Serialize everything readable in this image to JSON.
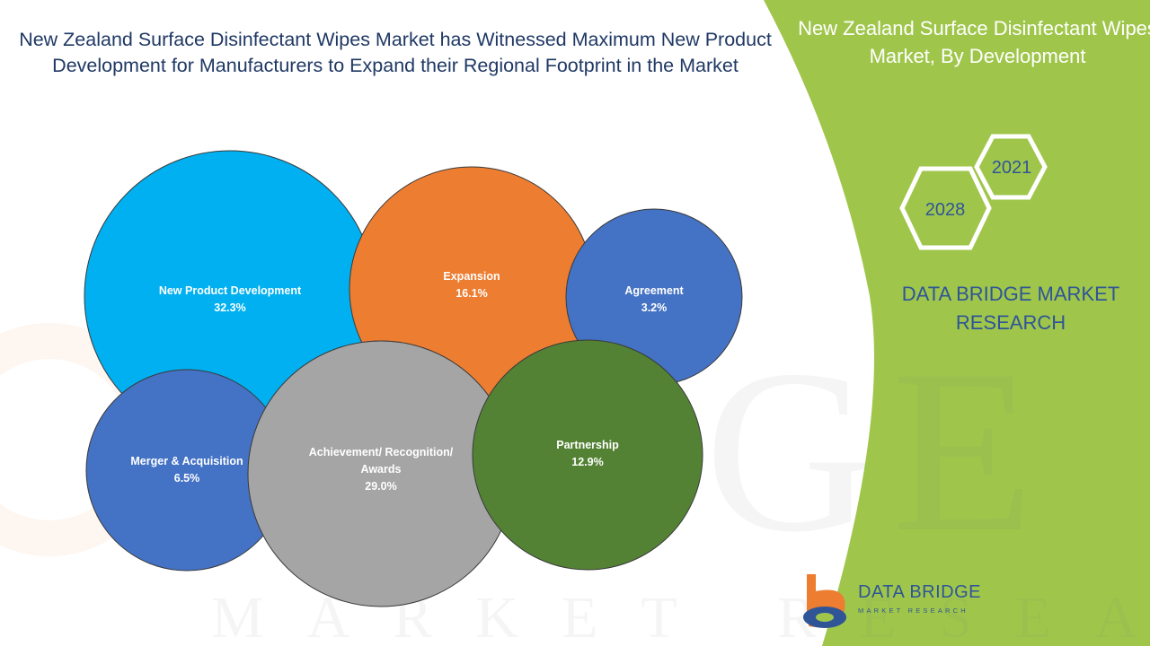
{
  "title": "New Zealand Surface Disinfectant Wipes Market has Witnessed Maximum New Product Development for Manufacturers to Expand their Regional Footprint in the Market",
  "side_panel": {
    "title": "New Zealand Surface Disinfectant Wipes Market, By Development",
    "years": [
      "2021",
      "2028"
    ],
    "brand": "DATA BRIDGE MARKET RESEARCH",
    "background_color": "#9fc64b"
  },
  "logo": {
    "name": "DATA BRIDGE",
    "tagline": "MARKET RESEARCH"
  },
  "chart_data": {
    "type": "bubble",
    "title": "New Zealand Surface Disinfectant Wipes Market, By Development",
    "series": [
      {
        "name": "New Product Development",
        "label": "New Product Development",
        "value": 32.3,
        "value_label": "32.3%",
        "color": "#00b0f0"
      },
      {
        "name": "Expansion",
        "label": "Expansion",
        "value": 16.1,
        "value_label": "16.1%",
        "color": "#ed7d31"
      },
      {
        "name": "Agreement",
        "label": "Agreement",
        "value": 3.2,
        "value_label": "3.2%",
        "color": "#4472c4"
      },
      {
        "name": "Merger & Acquisition",
        "label": "Merger & Acquisition",
        "value": 6.5,
        "value_label": "6.5%",
        "color": "#4472c4"
      },
      {
        "name": "Achievement/ Recognition/ Awards",
        "label_lines": [
          "Achievement/ Recognition/",
          "Awards"
        ],
        "value": 29.0,
        "value_label": "29.0%",
        "color": "#a5a5a5"
      },
      {
        "name": "Partnership",
        "label": "Partnership",
        "value": 12.9,
        "value_label": "12.9%",
        "color": "#548235"
      }
    ]
  }
}
